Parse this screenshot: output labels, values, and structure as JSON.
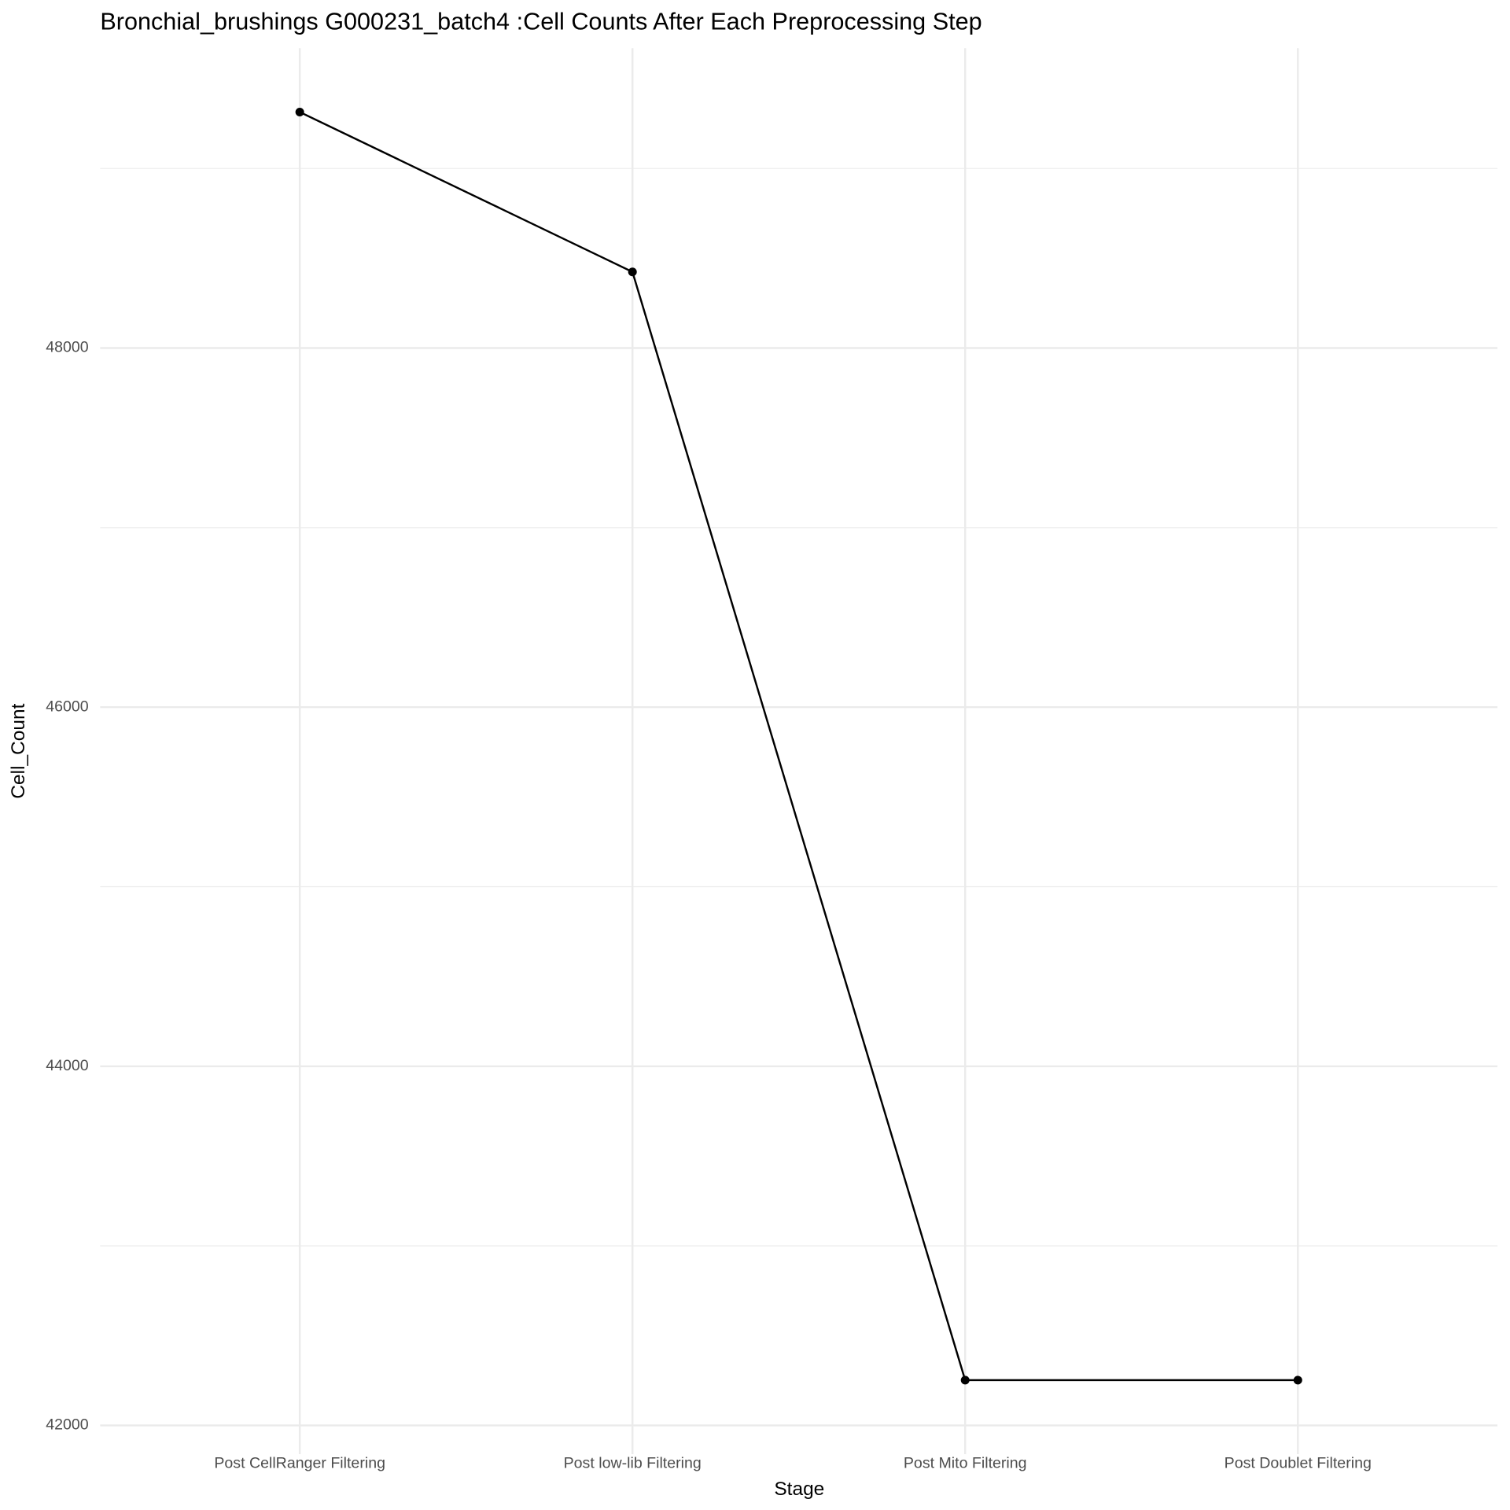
{
  "chart_data": {
    "type": "line",
    "title": "Bronchial_brushings G000231_batch4 :Cell Counts After Each Preprocessing Step",
    "x_label": "Stage",
    "y_label": "Cell_Count",
    "categories": [
      "Post CellRanger Filtering",
      "Post low-lib Filtering",
      "Post Mito Filtering",
      "Post Doublet Filtering"
    ],
    "series": [
      {
        "name": "Cell_Count",
        "color": "#000000",
        "values": [
          49314,
          48424,
          42252,
          42252
        ]
      }
    ],
    "ylim": [
      41840,
      49670
    ],
    "yticks": [
      42000,
      44000,
      46000,
      48000
    ],
    "y_minor_ticks": [
      43000,
      45000,
      47000,
      49000
    ],
    "grid": true
  }
}
